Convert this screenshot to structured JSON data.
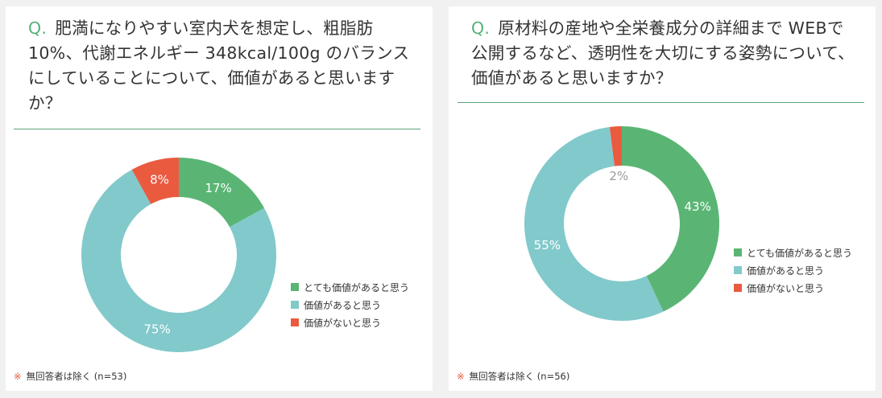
{
  "colors": {
    "high": "#5ab574",
    "mid": "#82c9cb",
    "low": "#ea5a3f",
    "accent": "#55b07a"
  },
  "panels": [
    {
      "q_mark": "Q.",
      "question": "肥満になりやすい室内犬を想定し、粗脂肪10%、代謝エネルギー 348kcal/100g のバランスにしていることについて、価値があると思いますか？",
      "note_mark": "※",
      "note": "無回答者は除く (n=53)"
    },
    {
      "q_mark": "Q.",
      "question": "原材料の産地や全栄養成分の詳細まで WEBで公開するなど、透明性を大切にする姿勢について、価値があると思いますか？",
      "note_mark": "※",
      "note": "無回答者は除く (n=56)"
    }
  ],
  "chart_data": [
    {
      "type": "pie",
      "categories": [
        "とても価値があると思う",
        "価値があると思う",
        "価値がないと思う"
      ],
      "values": [
        17,
        75,
        8
      ],
      "labels": [
        "17%",
        "75%",
        "8%"
      ],
      "colors": [
        "#5ab574",
        "#82c9cb",
        "#ea5a3f"
      ],
      "legend": "right"
    },
    {
      "type": "pie",
      "categories": [
        "とても価値があると思う",
        "価値があると思う",
        "価値がないと思う"
      ],
      "values": [
        43,
        55,
        2
      ],
      "labels": [
        "43%",
        "55%",
        "2%"
      ],
      "colors": [
        "#5ab574",
        "#82c9cb",
        "#ea5a3f"
      ],
      "legend": "right"
    }
  ]
}
